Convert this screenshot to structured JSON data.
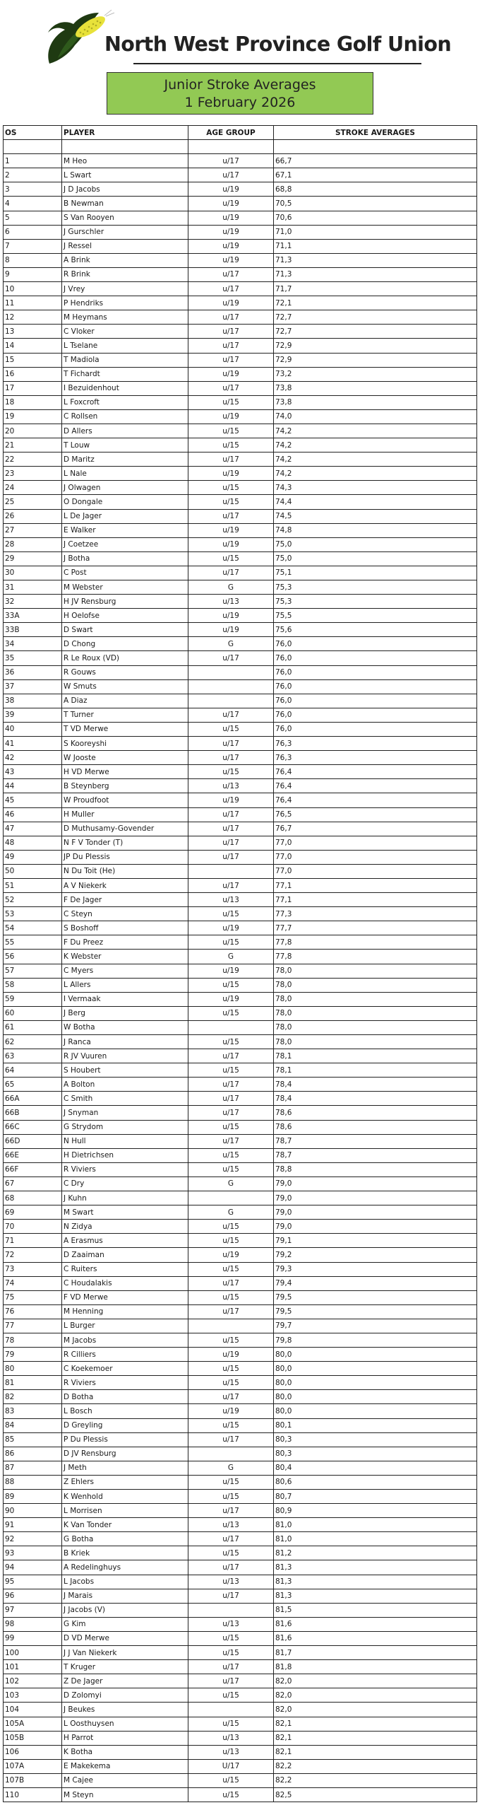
{
  "header": {
    "organisation": "North West Province Golf Union",
    "logo": "maize-cob-logo",
    "banner_line1": "Junior Stroke Averages",
    "banner_line2": "1 February 2026",
    "banner_color": "#92c954"
  },
  "table": {
    "columns": [
      "OS",
      "PLAYER",
      "AGE GROUP",
      "STROKE AVERAGES"
    ],
    "rows": [
      [
        "1",
        "M Heo",
        "u/17",
        "66,7"
      ],
      [
        "2",
        "L Swart",
        "u/17",
        "67,1"
      ],
      [
        "3",
        "J D Jacobs",
        "u/19",
        "68,8"
      ],
      [
        "4",
        "B Newman",
        "u/19",
        "70,5"
      ],
      [
        "5",
        "S Van Rooyen",
        "u/19",
        "70,6"
      ],
      [
        "6",
        "J Gurschler",
        "u/19",
        "71,0"
      ],
      [
        "7",
        "J Ressel",
        "u/19",
        "71,1"
      ],
      [
        "8",
        "A Brink",
        "u/19",
        "71,3"
      ],
      [
        "9",
        "R Brink",
        "u/17",
        "71,3"
      ],
      [
        "10",
        "J Vrey",
        "u/17",
        "71,7"
      ],
      [
        "11",
        "P Hendriks",
        "u/19",
        "72,1"
      ],
      [
        "12",
        "M Heymans",
        "u/17",
        "72,7"
      ],
      [
        "13",
        "C Vloker",
        "u/17",
        "72,7"
      ],
      [
        "14",
        "L Tselane",
        "u/17",
        "72,9"
      ],
      [
        "15",
        "T Madiola",
        "u/17",
        "72,9"
      ],
      [
        "16",
        "T Fichardt",
        "u/19",
        "73,2"
      ],
      [
        "17",
        "I Bezuidenhout",
        "u/17",
        "73,8"
      ],
      [
        "18",
        "L Foxcroft",
        "u/15",
        "73,8"
      ],
      [
        "19",
        "C Rollsen",
        "u/19",
        "74,0"
      ],
      [
        "20",
        "D Allers",
        "u/15",
        "74,2"
      ],
      [
        "21",
        "T Louw",
        "u/15",
        "74,2"
      ],
      [
        "22",
        "D Maritz",
        "u/17",
        "74,2"
      ],
      [
        "23",
        "L Nale",
        "u/19",
        "74,2"
      ],
      [
        "24",
        "J Olwagen",
        "u/15",
        "74,3"
      ],
      [
        "25",
        "O Dongale",
        "u/15",
        "74,4"
      ],
      [
        "26",
        "L De Jager",
        "u/17",
        "74,5"
      ],
      [
        "27",
        "E Walker",
        "u/19",
        "74,8"
      ],
      [
        "28",
        "J Coetzee",
        "u/19",
        "75,0"
      ],
      [
        "29",
        "J Botha",
        "u/15",
        "75,0"
      ],
      [
        "30",
        "C Post",
        "u/17",
        "75,1"
      ],
      [
        "31",
        "M Webster",
        "G",
        "75,3"
      ],
      [
        "32",
        "H JV Rensburg",
        "u/13",
        "75,3"
      ],
      [
        "33A",
        "H Oelofse",
        "u/19",
        "75,5"
      ],
      [
        "33B",
        "D Swart",
        "u/19",
        "75,6"
      ],
      [
        "34",
        "D Chong",
        "G",
        "76,0"
      ],
      [
        "35",
        "R Le Roux (VD)",
        "u/17",
        "76,0"
      ],
      [
        "36",
        "R Gouws",
        "",
        "76,0"
      ],
      [
        "37",
        "W Smuts",
        "",
        "76,0"
      ],
      [
        "38",
        "A Diaz",
        "",
        "76,0"
      ],
      [
        "39",
        "T Turner",
        "u/17",
        "76,0"
      ],
      [
        "40",
        "T VD Merwe",
        "u/15",
        "76,0"
      ],
      [
        "41",
        "S Kooreyshi",
        "u/17",
        "76,3"
      ],
      [
        "42",
        "W Jooste",
        "u/17",
        "76,3"
      ],
      [
        "43",
        "H VD Merwe",
        "u/15",
        "76,4"
      ],
      [
        "44",
        "B Steynberg",
        "u/13",
        "76,4"
      ],
      [
        "45",
        "W Proudfoot",
        "u/19",
        "76,4"
      ],
      [
        "46",
        "H Muller",
        "u/17",
        "76,5"
      ],
      [
        "47",
        "D Muthusamy-Govender",
        "u/17",
        "76,7"
      ],
      [
        "48",
        "N F V Tonder (T)",
        "u/17",
        "77,0"
      ],
      [
        "49",
        "JP Du Plessis",
        "u/17",
        "77,0"
      ],
      [
        "50",
        "N Du Toit (He)",
        "",
        "77,0"
      ],
      [
        "51",
        "A V Niekerk",
        "u/17",
        "77,1"
      ],
      [
        "52",
        "F De Jager",
        "u/13",
        "77,1"
      ],
      [
        "53",
        "C Steyn",
        "u/15",
        "77,3"
      ],
      [
        "54",
        "S Boshoff",
        "u/19",
        "77,7"
      ],
      [
        "55",
        "F Du Preez",
        "u/15",
        "77,8"
      ],
      [
        "56",
        "K Webster",
        "G",
        "77,8"
      ],
      [
        "57",
        "C Myers",
        "u/19",
        "78,0"
      ],
      [
        "58",
        "L Allers",
        "u/15",
        "78,0"
      ],
      [
        "59",
        "I Vermaak",
        "u/19",
        "78,0"
      ],
      [
        "60",
        "J Berg",
        "u/15",
        "78,0"
      ],
      [
        "61",
        "W Botha",
        "",
        "78,0"
      ],
      [
        "62",
        "J Ranca",
        "u/15",
        "78,0"
      ],
      [
        "63",
        "R JV Vuuren",
        "u/17",
        "78,1"
      ],
      [
        "64",
        "S Houbert",
        "u/15",
        "78,1"
      ],
      [
        "65",
        "A Bolton",
        "u/17",
        "78,4"
      ],
      [
        "66A",
        "C Smith",
        "u/17",
        "78,4"
      ],
      [
        "66B",
        "J Snyman",
        "u/17",
        "78,6"
      ],
      [
        "66C",
        "G Strydom",
        "u/15",
        "78,6"
      ],
      [
        "66D",
        "N Hull",
        "u/17",
        "78,7"
      ],
      [
        "66E",
        "H Dietrichsen",
        "u/15",
        "78,7"
      ],
      [
        "66F",
        "R Viviers",
        "u/15",
        "78,8"
      ],
      [
        "67",
        "C Dry",
        "G",
        "79,0"
      ],
      [
        "68",
        "J Kuhn",
        "",
        "79,0"
      ],
      [
        "69",
        "M Swart",
        "G",
        "79,0"
      ],
      [
        "70",
        "N Zidya",
        "u/15",
        "79,0"
      ],
      [
        "71",
        "A Erasmus",
        "u/15",
        "79,1"
      ],
      [
        "72",
        "D Zaaiman",
        "u/19",
        "79,2"
      ],
      [
        "73",
        "C Ruiters",
        "u/15",
        "79,3"
      ],
      [
        "74",
        "C Houdalakis",
        "u/17",
        "79,4"
      ],
      [
        "75",
        "F VD Merwe",
        "u/15",
        "79,5"
      ],
      [
        "76",
        "M Henning",
        "u/17",
        "79,5"
      ],
      [
        "77",
        "L Burger",
        "",
        "79,7"
      ],
      [
        "78",
        "M Jacobs",
        "u/15",
        "79,8"
      ],
      [
        "79",
        "R Cilliers",
        "u/19",
        "80,0"
      ],
      [
        "80",
        "C Koekemoer",
        "u/15",
        "80,0"
      ],
      [
        "81",
        "R Viviers",
        "u/15",
        "80,0"
      ],
      [
        "82",
        "D Botha",
        "u/17",
        "80,0"
      ],
      [
        "83",
        "L Bosch",
        "u/19",
        "80,0"
      ],
      [
        "84",
        "D Greyling",
        "u/15",
        "80,1"
      ],
      [
        "85",
        "P Du Plessis",
        "u/17",
        "80,3"
      ],
      [
        "86",
        "D JV Rensburg",
        "",
        "80,3"
      ],
      [
        "87",
        "J Meth",
        "G",
        "80,4"
      ],
      [
        "88",
        "Z Ehlers",
        "u/15",
        "80,6"
      ],
      [
        "89",
        "K Wenhold",
        "u/15",
        "80,7"
      ],
      [
        "90",
        "L Morrisen",
        "u/17",
        "80,9"
      ],
      [
        "91",
        "K Van Tonder",
        "u/13",
        "81,0"
      ],
      [
        "92",
        "G Botha",
        "u/17",
        "81,0"
      ],
      [
        "93",
        "B Kriek",
        "u/15",
        "81,2"
      ],
      [
        "94",
        "A Redelinghuys",
        "u/17",
        "81,3"
      ],
      [
        "95",
        "L Jacobs",
        "u/13",
        "81,3"
      ],
      [
        "96",
        "J Marais",
        "u/17",
        "81,3"
      ],
      [
        "97",
        "J Jacobs (V)",
        "",
        "81,5"
      ],
      [
        "98",
        "G Kim",
        "u/13",
        "81,6"
      ],
      [
        "99",
        "D VD Merwe",
        "u/15",
        "81,6"
      ],
      [
        "100",
        "J J Van Niekerk",
        "u/15",
        "81,7"
      ],
      [
        "101",
        "T Kruger",
        "u/17",
        "81,8"
      ],
      [
        "102",
        "Z De Jager",
        "u/17",
        "82,0"
      ],
      [
        "103",
        "D Zolomyi",
        "u/15",
        "82,0"
      ],
      [
        "104",
        "J Beukes",
        "",
        "82,0"
      ],
      [
        "105A",
        "L Oosthuysen",
        "u/15",
        "82,1"
      ],
      [
        "105B",
        "H Parrot",
        "u/13",
        "82,1"
      ],
      [
        "106",
        "K Botha",
        "u/13",
        "82,1"
      ],
      [
        "107A",
        "E Makekema",
        "U/17",
        "82,2"
      ],
      [
        "107B",
        "M Cajee",
        "u/15",
        "82,2"
      ],
      [
        "110",
        "M Steyn",
        "u/15",
        "82,5"
      ]
    ]
  }
}
